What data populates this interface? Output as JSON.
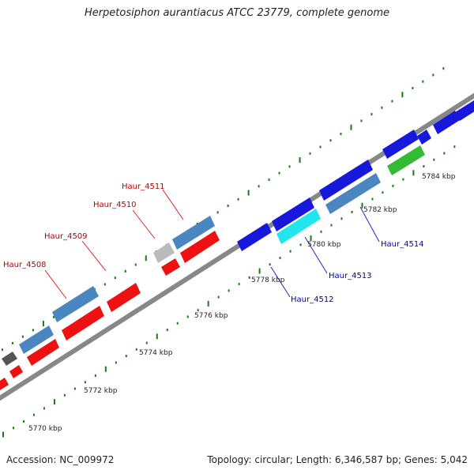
{
  "header": {
    "title": "Herpetosiphon aurantiacus ATCC 23779, complete genome"
  },
  "footer": {
    "accession": "Accession: NC_009972",
    "summary": "Topology: circular; Length: 6,346,587 bp; Genes: 5,042"
  },
  "colors": {
    "backbone": "#888888",
    "ticks": "#1a7a1a",
    "red_gene": "#ee1111",
    "steelblue_gene": "#4a86bf",
    "blue_gene": "#1818dd",
    "cyan_gene": "#22e6ee",
    "green_gene": "#33bb33",
    "grey_gene": "#bbbbbb",
    "darkgrey_gene": "#555555",
    "label_left": "#bb0000",
    "label_right": "#0000aa"
  },
  "diagram": {
    "kbp_labels": [
      {
        "text": "5770 kbp",
        "pos": 5770
      },
      {
        "text": "5772 kbp",
        "pos": 5772
      },
      {
        "text": "5774 kbp",
        "pos": 5774
      },
      {
        "text": "5776 kbp",
        "pos": 5776
      },
      {
        "text": "5778 kbp",
        "pos": 5778
      },
      {
        "text": "5780 kbp",
        "pos": 5780
      },
      {
        "text": "5782 kbp",
        "pos": 5782
      },
      {
        "text": "5784 kbp",
        "pos": 5784
      }
    ],
    "gene_labels": [
      {
        "text": "Haur_4508",
        "side": "left"
      },
      {
        "text": "Haur_4509",
        "side": "left"
      },
      {
        "text": "Haur_4510",
        "side": "left"
      },
      {
        "text": "Haur_4511",
        "side": "left"
      },
      {
        "text": "Haur_4512",
        "side": "right"
      },
      {
        "text": "Haur_4513",
        "side": "right"
      },
      {
        "text": "Haur_4514",
        "side": "right"
      }
    ]
  }
}
